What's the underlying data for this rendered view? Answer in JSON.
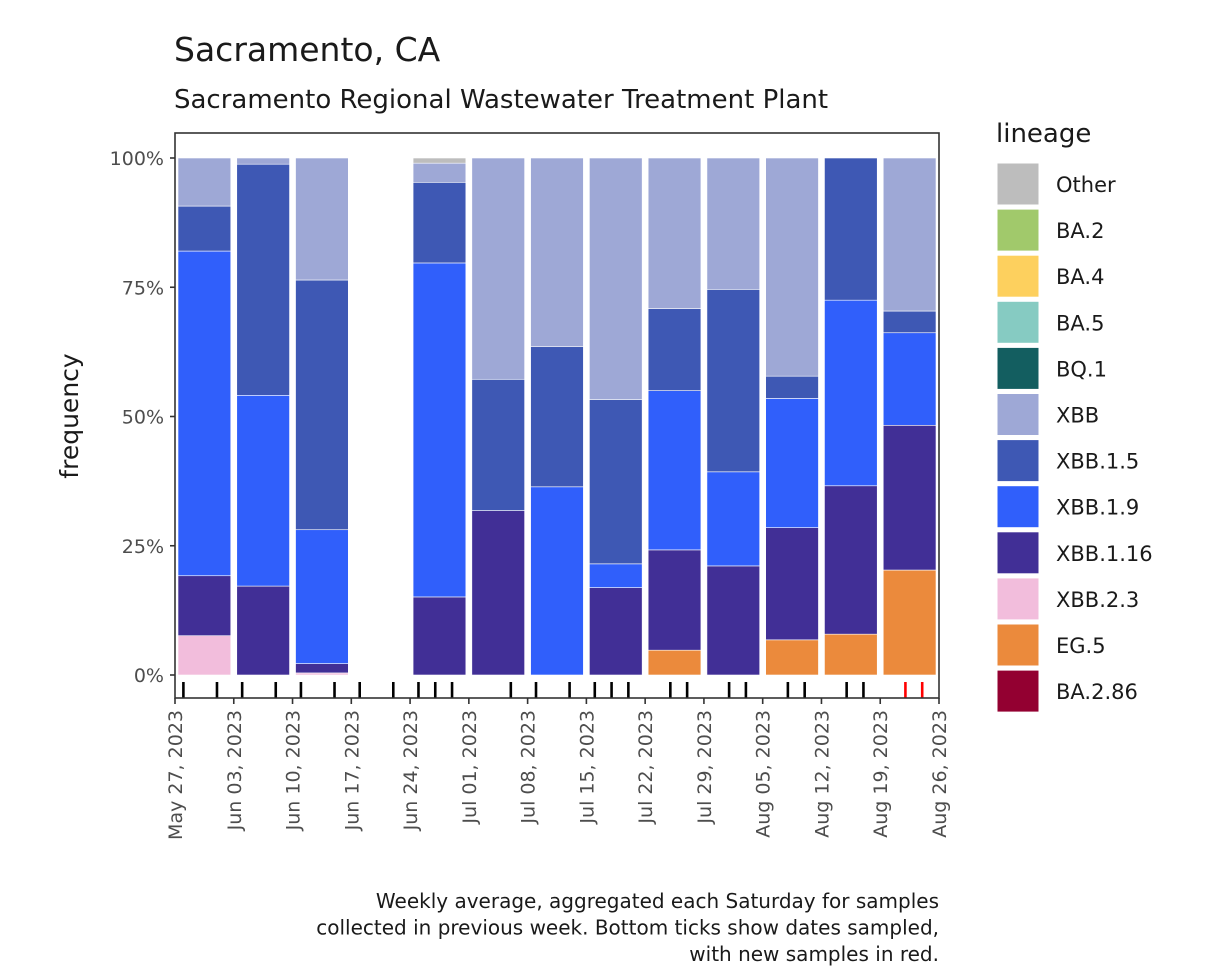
{
  "chart_data": {
    "type": "bar",
    "stacked": true,
    "title": "Sacramento, CA",
    "subtitle": "Sacramento Regional Wastewater Treatment Plant",
    "xlabel": "",
    "ylabel": "frequency",
    "ylim": [
      0,
      1
    ],
    "y_ticks": [
      {
        "value": 0,
        "label": "0%"
      },
      {
        "value": 0.25,
        "label": "25%"
      },
      {
        "value": 0.5,
        "label": "50%"
      },
      {
        "value": 0.75,
        "label": "75%"
      },
      {
        "value": 1,
        "label": "100%"
      }
    ],
    "x_range": [
      "2023-05-27",
      "2023-08-26"
    ],
    "x_ticks": [
      "May 27, 2023",
      "Jun 03, 2023",
      "Jun 10, 2023",
      "Jun 17, 2023",
      "Jun 24, 2023",
      "Jul 01, 2023",
      "Jul 08, 2023",
      "Jul 15, 2023",
      "Jul 22, 2023",
      "Jul 29, 2023",
      "Aug 05, 2023",
      "Aug 12, 2023",
      "Aug 19, 2023",
      "Aug 26, 2023"
    ],
    "grid": false,
    "legend": {
      "title": "lineage",
      "position": "right",
      "entries": [
        {
          "name": "Other",
          "color": "#bdbdbd"
        },
        {
          "name": "BA.2",
          "color": "#a1c96b"
        },
        {
          "name": "BA.4",
          "color": "#fdd05e"
        },
        {
          "name": "BA.5",
          "color": "#86cbc2"
        },
        {
          "name": "BQ.1",
          "color": "#135e60"
        },
        {
          "name": "XBB",
          "color": "#9ea8d6"
        },
        {
          "name": "XBB.1.5",
          "color": "#3e58b4"
        },
        {
          "name": "XBB.1.9",
          "color": "#305ffb"
        },
        {
          "name": "XBB.1.16",
          "color": "#412f96"
        },
        {
          "name": "XBB.2.3",
          "color": "#f2bddc"
        },
        {
          "name": "EG.5",
          "color": "#eb8a3c"
        },
        {
          "name": "BA.2.86",
          "color": "#930031"
        }
      ]
    },
    "stack_order_bottom_to_top": [
      "BA.2.86",
      "EG.5",
      "XBB.2.3",
      "XBB.1.16",
      "XBB.1.9",
      "XBB.1.5",
      "XBB",
      "BQ.1",
      "BA.5",
      "BA.4",
      "BA.2",
      "Other"
    ],
    "bars": [
      {
        "week_start": "2023-05-27",
        "week_end": "2023-06-03",
        "values": {
          "XBB.2.3": 0.076,
          "XBB.1.16": 0.116,
          "XBB.1.9": 0.628,
          "XBB.1.5": 0.087,
          "XBB": 0.093
        }
      },
      {
        "week_start": "2023-06-03",
        "week_end": "2023-06-10",
        "values": {
          "XBB.1.16": 0.172,
          "XBB.1.9": 0.369,
          "XBB.1.5": 0.447,
          "XBB": 0.012
        }
      },
      {
        "week_start": "2023-06-10",
        "week_end": "2023-06-17",
        "values": {
          "XBB.2.3": 0.004,
          "XBB.1.16": 0.018,
          "XBB.1.9": 0.259,
          "XBB.1.5": 0.483,
          "XBB": 0.236
        }
      },
      {
        "week_start": "2023-06-24",
        "week_end": "2023-07-01",
        "values": {
          "XBB.1.16": 0.151,
          "XBB.1.9": 0.646,
          "XBB.1.5": 0.156,
          "XBB": 0.037,
          "Other": 0.01
        }
      },
      {
        "week_start": "2023-07-01",
        "week_end": "2023-07-08",
        "values": {
          "XBB.1.16": 0.318,
          "XBB.1.5": 0.254,
          "XBB": 0.428
        }
      },
      {
        "week_start": "2023-07-08",
        "week_end": "2023-07-15",
        "values": {
          "XBB.1.9": 0.364,
          "XBB.1.5": 0.271,
          "XBB": 0.365
        }
      },
      {
        "week_start": "2023-07-15",
        "week_end": "2023-07-22",
        "values": {
          "XBB.1.16": 0.169,
          "XBB.1.9": 0.046,
          "XBB.1.5": 0.318,
          "XBB": 0.467
        }
      },
      {
        "week_start": "2023-07-22",
        "week_end": "2023-07-29",
        "values": {
          "EG.5": 0.048,
          "XBB.1.16": 0.194,
          "XBB.1.9": 0.308,
          "XBB.1.5": 0.159,
          "XBB": 0.291
        }
      },
      {
        "week_start": "2023-07-29",
        "week_end": "2023-08-05",
        "values": {
          "XBB.1.16": 0.211,
          "XBB.1.9": 0.182,
          "XBB.1.5": 0.353,
          "XBB": 0.254
        }
      },
      {
        "week_start": "2023-08-05",
        "week_end": "2023-08-12",
        "values": {
          "EG.5": 0.068,
          "XBB.1.16": 0.217,
          "XBB.1.9": 0.25,
          "XBB.1.5": 0.043,
          "XBB": 0.422
        }
      },
      {
        "week_start": "2023-08-12",
        "week_end": "2023-08-19",
        "values": {
          "EG.5": 0.079,
          "XBB.1.16": 0.287,
          "XBB.1.9": 0.359,
          "XBB.1.5": 0.275
        }
      },
      {
        "week_start": "2023-08-19",
        "week_end": "2023-08-26",
        "values": {
          "EG.5": 0.203,
          "XBB.1.16": 0.28,
          "XBB.1.9": 0.179,
          "XBB.1.5": 0.042,
          "XBB": 0.296
        }
      }
    ],
    "sample_dates": [
      {
        "date": "2023-05-28",
        "new": false
      },
      {
        "date": "2023-06-01",
        "new": false
      },
      {
        "date": "2023-06-04",
        "new": false
      },
      {
        "date": "2023-06-08",
        "new": false
      },
      {
        "date": "2023-06-11",
        "new": false
      },
      {
        "date": "2023-06-15",
        "new": false
      },
      {
        "date": "2023-06-18",
        "new": false
      },
      {
        "date": "2023-06-22",
        "new": false
      },
      {
        "date": "2023-06-25",
        "new": false
      },
      {
        "date": "2023-06-27",
        "new": false
      },
      {
        "date": "2023-06-29",
        "new": false
      },
      {
        "date": "2023-07-06",
        "new": false
      },
      {
        "date": "2023-07-09",
        "new": false
      },
      {
        "date": "2023-07-13",
        "new": false
      },
      {
        "date": "2023-07-16",
        "new": false
      },
      {
        "date": "2023-07-18",
        "new": false
      },
      {
        "date": "2023-07-20",
        "new": false
      },
      {
        "date": "2023-07-25",
        "new": false
      },
      {
        "date": "2023-07-27",
        "new": false
      },
      {
        "date": "2023-08-01",
        "new": false
      },
      {
        "date": "2023-08-03",
        "new": false
      },
      {
        "date": "2023-08-08",
        "new": false
      },
      {
        "date": "2023-08-10",
        "new": false
      },
      {
        "date": "2023-08-15",
        "new": false
      },
      {
        "date": "2023-08-17",
        "new": false
      },
      {
        "date": "2023-08-22",
        "new": true
      },
      {
        "date": "2023-08-24",
        "new": true
      }
    ],
    "sample_tick_colors": {
      "old": "#000000",
      "new": "#ff0000"
    },
    "caption": [
      "Weekly average, aggregated each Saturday for samples",
      "collected in previous week. Bottom ticks show dates sampled,",
      "with new samples in red."
    ]
  }
}
